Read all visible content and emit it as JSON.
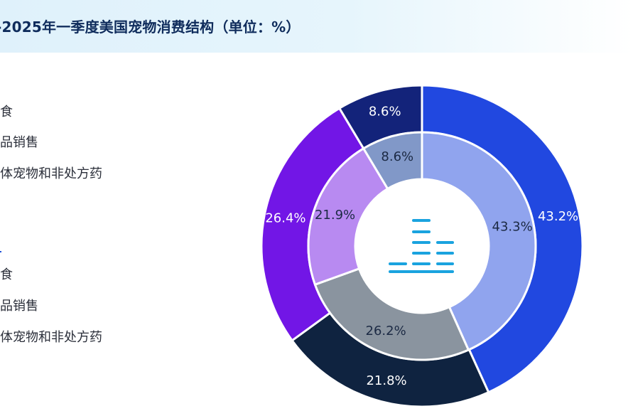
{
  "header": {
    "title": "-2025年一季度美国宠物消费结构（单位：%）"
  },
  "legend": {
    "group1": [
      {
        "label": "食"
      },
      {
        "label": "品销售"
      },
      {
        "label": "体宠物和非处方药"
      }
    ],
    "group2_marker": "1",
    "group2": [
      {
        "label": "食"
      },
      {
        "label": "品销售"
      },
      {
        "label": "体宠物和非处方药"
      }
    ]
  },
  "center": {
    "icon": "bar-chart-icon"
  },
  "chart_data": {
    "type": "pie",
    "style": "nested-donut",
    "title": "-2025年一季度美国宠物消费结构（单位：%）",
    "rings": [
      {
        "ring": "outer",
        "values": [
          43.2,
          21.8,
          26.4,
          8.6
        ],
        "labels": [
          "43.2%",
          "21.8%",
          "26.4%",
          "8.6%"
        ],
        "colors": [
          "#2148e0",
          "#0f2340",
          "#7216e6",
          "#13237a"
        ]
      },
      {
        "ring": "inner",
        "values": [
          43.3,
          26.2,
          21.9,
          8.6
        ],
        "labels": [
          "43.3%",
          "26.2%",
          "21.9%",
          "8.6%"
        ],
        "colors": [
          "#90a4ee",
          "#8a949f",
          "#b88af1",
          "#8198c8"
        ]
      }
    ]
  }
}
